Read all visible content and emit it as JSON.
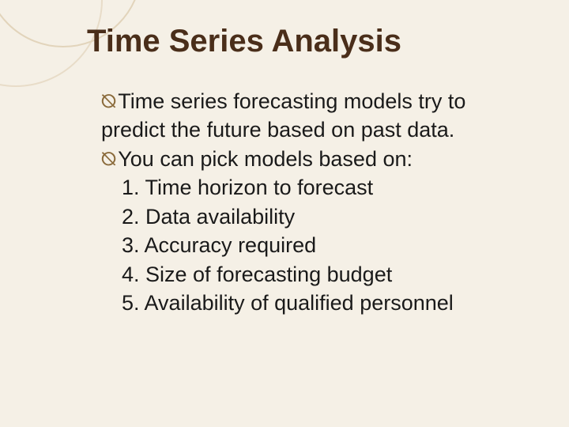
{
  "slide": {
    "title": "Time Series Analysis",
    "title_color": "#4a2e1a",
    "title_fontsize": 40,
    "background_color": "#f5f0e6",
    "circle_stroke_a": "#e8dcc8",
    "circle_stroke_b": "#e2d4bb",
    "body_fontsize": 27,
    "body_color": "#1a1a1a",
    "bullet_glyph": "⦰",
    "bullet_color": "#8a6a3a",
    "bullets": [
      "Time series forecasting models try to predict the future based on past data.",
      "You can pick models based on:"
    ],
    "numbered_items": [
      "1. Time horizon to forecast",
      "2. Data availability",
      "3. Accuracy required",
      "4. Size of forecasting budget",
      "5. Availability of qualified personnel"
    ]
  }
}
